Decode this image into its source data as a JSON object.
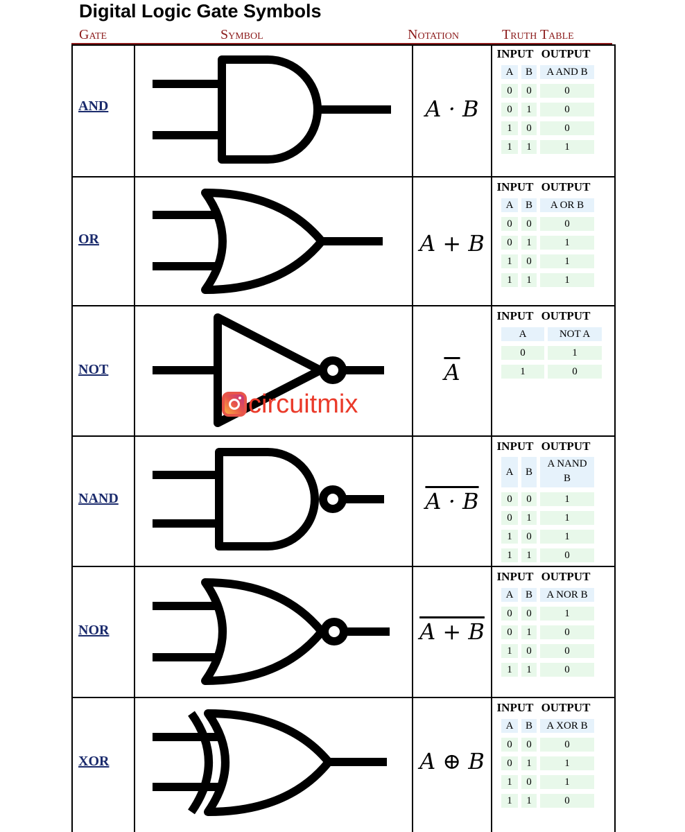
{
  "title": "Digital Logic Gate Symbols",
  "headers": {
    "gate": "Gate",
    "symbol": "Symbol",
    "notation": "Notation",
    "truth_table": "Truth Table"
  },
  "watermark": {
    "text": "circuitmix",
    "icon": "instagram-icon"
  },
  "gates": [
    {
      "name": "AND",
      "notation": "A · B",
      "tt": {
        "input": "INPUT",
        "output": "OUTPUT",
        "cols": [
          "A",
          "B",
          "A AND B"
        ],
        "rows": [
          [
            "0",
            "0",
            "0"
          ],
          [
            "0",
            "1",
            "0"
          ],
          [
            "1",
            "0",
            "0"
          ],
          [
            "1",
            "1",
            "1"
          ]
        ]
      }
    },
    {
      "name": "OR",
      "notation": "A + B",
      "tt": {
        "input": "INPUT",
        "output": "OUTPUT",
        "cols": [
          "A",
          "B",
          "A OR B"
        ],
        "rows": [
          [
            "0",
            "0",
            "0"
          ],
          [
            "0",
            "1",
            "1"
          ],
          [
            "1",
            "0",
            "1"
          ],
          [
            "1",
            "1",
            "1"
          ]
        ]
      }
    },
    {
      "name": "NOT",
      "notation": "A",
      "tt": {
        "input": "INPUT",
        "output": "OUTPUT",
        "cols": [
          "A",
          "NOT A"
        ],
        "rows": [
          [
            "0",
            "1"
          ],
          [
            "1",
            "0"
          ]
        ]
      }
    },
    {
      "name": "NAND",
      "notation": "A · B",
      "tt": {
        "input": "INPUT",
        "output": "OUTPUT",
        "cols": [
          "A",
          "B",
          "A NAND B"
        ],
        "rows": [
          [
            "0",
            "0",
            "1"
          ],
          [
            "0",
            "1",
            "1"
          ],
          [
            "1",
            "0",
            "1"
          ],
          [
            "1",
            "1",
            "0"
          ]
        ]
      }
    },
    {
      "name": "NOR",
      "notation": "A + B",
      "tt": {
        "input": "INPUT",
        "output": "OUTPUT",
        "cols": [
          "A",
          "B",
          "A NOR B"
        ],
        "rows": [
          [
            "0",
            "0",
            "1"
          ],
          [
            "0",
            "1",
            "0"
          ],
          [
            "1",
            "0",
            "0"
          ],
          [
            "1",
            "1",
            "0"
          ]
        ]
      }
    },
    {
      "name": "XOR",
      "notation": "A ⊕ B",
      "tt": {
        "input": "INPUT",
        "output": "OUTPUT",
        "cols": [
          "A",
          "B",
          "A XOR B"
        ],
        "rows": [
          [
            "0",
            "0",
            "0"
          ],
          [
            "0",
            "1",
            "1"
          ],
          [
            "1",
            "0",
            "1"
          ],
          [
            "1",
            "1",
            "0"
          ]
        ]
      }
    }
  ]
}
